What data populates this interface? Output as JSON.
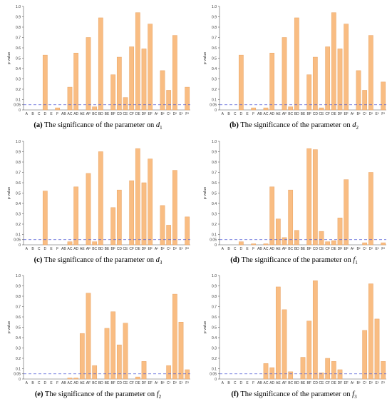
{
  "colors": {
    "bar": "#f9bd83",
    "bar_edge": "#e8a363",
    "reference_line": "#4f5bd5"
  },
  "panels": [
    {
      "letter": "(a)",
      "caption_text": "The significance of the parameter on ",
      "var": "d",
      "sub": "1"
    },
    {
      "letter": "(b)",
      "caption_text": "The significance of the parameter on ",
      "var": "d",
      "sub": "2"
    },
    {
      "letter": "(c)",
      "caption_text": "The significance of the parameter on ",
      "var": "d",
      "sub": "3"
    },
    {
      "letter": "(d)",
      "caption_text": "The significance of the parameter on ",
      "var": "f",
      "sub": "1"
    },
    {
      "letter": "(e)",
      "caption_text": "The significance of the parameter on ",
      "var": "f",
      "sub": "2"
    },
    {
      "letter": "(f)",
      "caption_text": "The significance of the parameter on ",
      "var": "f",
      "sub": "3"
    }
  ],
  "chart_data": [
    {
      "type": "bar",
      "categories": [
        "A",
        "B",
        "C",
        "D",
        "E",
        "F",
        "AB",
        "AC",
        "AD",
        "AE",
        "AF",
        "BC",
        "BD",
        "BE",
        "BF",
        "CD",
        "CE",
        "CF",
        "DE",
        "DF",
        "EF",
        "A²",
        "B²",
        "C²",
        "D²",
        "E²",
        "F²"
      ],
      "values": [
        0,
        0,
        0,
        0.53,
        0,
        0.02,
        0,
        0.22,
        0.55,
        0,
        0.7,
        0.03,
        0.89,
        0,
        0.34,
        0.51,
        0.12,
        0.61,
        0.94,
        0.59,
        0.83,
        0,
        0.38,
        0.19,
        0.72,
        0,
        0.22
      ],
      "ylabel": "p value",
      "yticks": [
        "0",
        "0.05",
        "0.1",
        "0.2",
        "0.3",
        "0.4",
        "0.5",
        "0.6",
        "0.7",
        "0.8",
        "0.9",
        "1.0"
      ],
      "ylim": [
        0,
        1.0
      ],
      "reference_line": 0.05
    },
    {
      "type": "bar",
      "categories": [
        "A",
        "B",
        "C",
        "D",
        "E",
        "F",
        "AB",
        "AC",
        "AD",
        "AE",
        "AF",
        "BC",
        "BD",
        "BE",
        "BF",
        "CD",
        "CE",
        "CF",
        "DE",
        "DF",
        "EF",
        "A²",
        "B²",
        "C²",
        "D²",
        "E²",
        "F²"
      ],
      "values": [
        0,
        0,
        0,
        0.53,
        0,
        0.02,
        0,
        0.02,
        0.55,
        0,
        0.7,
        0.03,
        0.89,
        0,
        0.34,
        0.51,
        0.02,
        0.61,
        0.94,
        0.59,
        0.83,
        0,
        0.38,
        0.19,
        0.72,
        0,
        0.27
      ],
      "ylabel": "p value",
      "yticks": [
        "0",
        "0.05",
        "0.1",
        "0.2",
        "0.3",
        "0.4",
        "0.5",
        "0.6",
        "0.7",
        "0.8",
        "0.9",
        "1.0"
      ],
      "ylim": [
        0,
        1.0
      ],
      "reference_line": 0.05
    },
    {
      "type": "bar",
      "categories": [
        "A",
        "B",
        "C",
        "D",
        "E",
        "F",
        "AB",
        "AC",
        "AD",
        "AE",
        "AF",
        "BC",
        "BD",
        "BE",
        "BF",
        "CD",
        "CE",
        "CF",
        "DE",
        "DF",
        "EF",
        "A²",
        "B²",
        "C²",
        "D²",
        "E²",
        "F²"
      ],
      "values": [
        0,
        0,
        0,
        0.52,
        0,
        0,
        0,
        0.03,
        0.56,
        0,
        0.69,
        0.03,
        0.9,
        0,
        0.36,
        0.53,
        0,
        0.62,
        0.93,
        0.6,
        0.83,
        0,
        0.38,
        0.19,
        0.72,
        0,
        0.27
      ],
      "ylabel": "p value",
      "yticks": [
        "0",
        "0.05",
        "0.1",
        "0.2",
        "0.3",
        "0.4",
        "0.5",
        "0.6",
        "0.7",
        "0.8",
        "0.9",
        "1.0"
      ],
      "ylim": [
        0,
        1.0
      ],
      "reference_line": 0.05
    },
    {
      "type": "bar",
      "categories": [
        "A",
        "B",
        "C",
        "D",
        "E",
        "F",
        "AB",
        "AC",
        "AD",
        "AE",
        "AF",
        "BC",
        "BD",
        "BE",
        "BF",
        "CD",
        "CE",
        "CF",
        "DE",
        "DF",
        "EF",
        "A²",
        "B²",
        "C²",
        "D²",
        "E²",
        "F²"
      ],
      "values": [
        0,
        0,
        0,
        0.03,
        0,
        0.01,
        0,
        0.01,
        0.56,
        0.25,
        0.07,
        0.53,
        0.14,
        0,
        0.93,
        0.92,
        0.13,
        0.03,
        0.04,
        0.26,
        0.63,
        0,
        0,
        0.02,
        0.7,
        0,
        0.02
      ],
      "ylabel": "p value",
      "yticks": [
        "0",
        "0.05",
        "0.1",
        "0.2",
        "0.3",
        "0.4",
        "0.5",
        "0.6",
        "0.7",
        "0.8",
        "0.9",
        "1.0"
      ],
      "ylim": [
        0,
        1.0
      ],
      "reference_line": 0.05
    },
    {
      "type": "bar",
      "categories": [
        "A",
        "B",
        "C",
        "D",
        "E",
        "F",
        "AB",
        "AC",
        "AD",
        "AE",
        "AF",
        "BC",
        "BD",
        "BE",
        "BF",
        "CD",
        "CE",
        "CF",
        "DE",
        "DF",
        "EF",
        "A²",
        "B²",
        "C²",
        "D²",
        "E²",
        "F²"
      ],
      "values": [
        0,
        0,
        0,
        0,
        0,
        0,
        0,
        0.01,
        0.01,
        0.44,
        0.83,
        0.13,
        0,
        0.49,
        0.65,
        0.33,
        0.54,
        0,
        0.02,
        0.17,
        0,
        0,
        0,
        0.13,
        0.82,
        0.55,
        0.09
      ],
      "ylabel": "p value",
      "yticks": [
        "0",
        "0.05",
        "0.1",
        "0.2",
        "0.3",
        "0.4",
        "0.5",
        "0.6",
        "0.7",
        "0.8",
        "0.9",
        "1.0"
      ],
      "ylim": [
        0,
        1.0
      ],
      "reference_line": 0.05
    },
    {
      "type": "bar",
      "categories": [
        "A",
        "B",
        "C",
        "D",
        "E",
        "F",
        "AB",
        "AC",
        "AD",
        "AE",
        "AF",
        "BC",
        "BD",
        "BE",
        "BF",
        "CD",
        "CE",
        "CF",
        "DE",
        "DF",
        "EF",
        "A²",
        "B²",
        "C²",
        "D²",
        "E²",
        "F²"
      ],
      "values": [
        0,
        0,
        0,
        0,
        0,
        0,
        0,
        0.15,
        0.11,
        0.89,
        0.67,
        0.07,
        0,
        0.21,
        0.56,
        0.95,
        0.06,
        0.2,
        0.17,
        0.09,
        0,
        0,
        0,
        0.47,
        0.92,
        0.58,
        0.17
      ],
      "ylabel": "p value",
      "yticks": [
        "0",
        "0.05",
        "0.1",
        "0.2",
        "0.3",
        "0.4",
        "0.5",
        "0.6",
        "0.7",
        "0.8",
        "0.9",
        "1.0"
      ],
      "ylim": [
        0,
        1.0
      ],
      "reference_line": 0.05
    }
  ]
}
